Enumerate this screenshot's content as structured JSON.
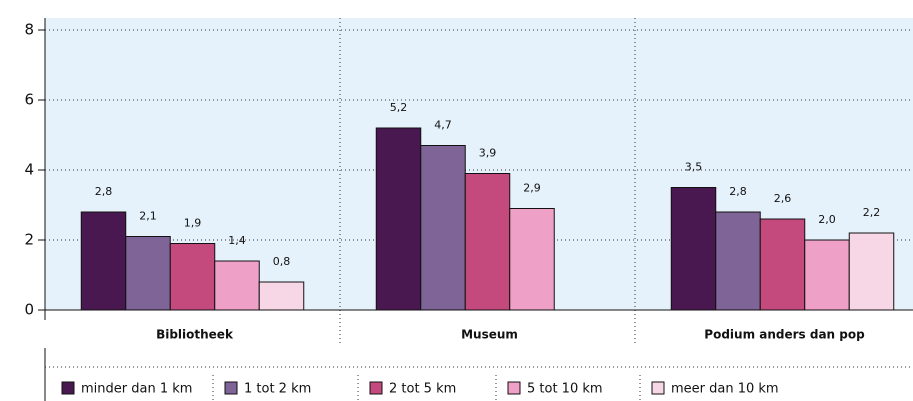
{
  "chart_data": {
    "type": "bar",
    "categories": [
      "Bibliotheek",
      "Museum",
      "Podium anders dan pop"
    ],
    "series": [
      {
        "name": "minder dan 1 km",
        "color": "#4a1850",
        "values": [
          2.8,
          5.2,
          3.5
        ],
        "value_labels": [
          "2,8",
          "5,2",
          "3,5"
        ]
      },
      {
        "name": "1 tot 2 km",
        "color": "#7e6497",
        "values": [
          2.1,
          4.7,
          2.8
        ],
        "value_labels": [
          "2,1",
          "4,7",
          "2,8"
        ]
      },
      {
        "name": "2 tot 5 km",
        "color": "#c44a7e",
        "values": [
          1.9,
          3.9,
          2.6
        ],
        "value_labels": [
          "1,9",
          "3,9",
          "2,6"
        ]
      },
      {
        "name": "5 tot 10 km",
        "color": "#eea0c6",
        "values": [
          1.4,
          2.9,
          2.0
        ],
        "value_labels": [
          "1,4",
          "2,9",
          "2,0"
        ]
      },
      {
        "name": "meer dan 10 km",
        "color": "#f7d6e6",
        "values": [
          0.8,
          null,
          2.2
        ],
        "value_labels": [
          "0,8",
          null,
          "2,2"
        ]
      }
    ],
    "ylim": [
      0,
      8
    ],
    "yticks": [
      0,
      2,
      4,
      6,
      8
    ],
    "grid": true
  }
}
